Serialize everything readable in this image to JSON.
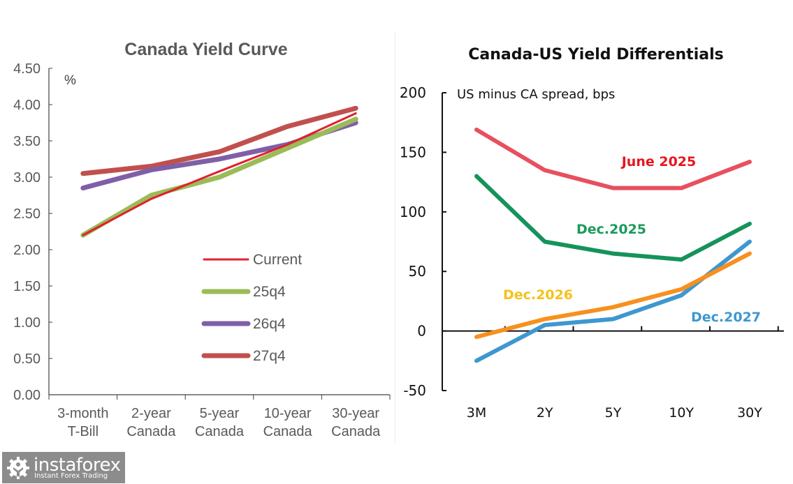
{
  "chart_data": [
    {
      "type": "line",
      "title": "Canada Yield Curve",
      "xlabel": "",
      "ylabel": "%",
      "ylim": [
        0,
        4.5
      ],
      "yticks": [
        "0.00",
        "0.50",
        "1.00",
        "1.50",
        "2.00",
        "2.50",
        "3.00",
        "3.50",
        "4.00",
        "4.50"
      ],
      "ytick_values": [
        0,
        0.5,
        1,
        1.5,
        2,
        2.5,
        3,
        3.5,
        4,
        4.5
      ],
      "categories": [
        [
          "3-month",
          "T-Bill"
        ],
        [
          "2-year",
          "Canada"
        ],
        [
          "5-year",
          "Canada"
        ],
        [
          "10-year",
          "Canada"
        ],
        [
          "30-year",
          "Canada"
        ]
      ],
      "grid": false,
      "legend_position": "center-right",
      "series": [
        {
          "name": "Current",
          "color": "#e0202e",
          "width": "thin",
          "values": [
            2.2,
            2.7,
            3.08,
            3.45,
            3.88
          ]
        },
        {
          "name": "25q4",
          "color": "#9bbb59",
          "width": "thick",
          "values": [
            2.2,
            2.75,
            3.0,
            3.4,
            3.8
          ]
        },
        {
          "name": "26q4",
          "color": "#7f5fa8",
          "width": "thick",
          "values": [
            2.85,
            3.1,
            3.25,
            3.45,
            3.75
          ]
        },
        {
          "name": "27q4",
          "color": "#c0504d",
          "width": "thick",
          "values": [
            3.05,
            3.15,
            3.35,
            3.7,
            3.95
          ]
        }
      ]
    },
    {
      "type": "line",
      "title": "Canada-US Yield Differentials",
      "xlabel": "",
      "ylabel": "US minus CA spread, bps",
      "ylim": [
        -50,
        200
      ],
      "yticks": [
        "-50",
        "0",
        "50",
        "100",
        "150",
        "200"
      ],
      "ytick_values": [
        -50,
        0,
        50,
        100,
        150,
        200
      ],
      "categories": [
        "3M",
        "2Y",
        "5Y",
        "10Y",
        "30Y"
      ],
      "grid": false,
      "legend_position": "inline-labels",
      "series": [
        {
          "name": "June 2025",
          "color": "#e8505f",
          "label_color": "#e8141f",
          "values": [
            169,
            135,
            120,
            120,
            142
          ]
        },
        {
          "name": "Dec.2025",
          "color": "#15935a",
          "label_color": "#1a9a5c",
          "values": [
            130,
            75,
            65,
            60,
            90
          ]
        },
        {
          "name": "Dec.2026",
          "color": "#f7901e",
          "label_color": "#f5c21b",
          "values": [
            -5,
            10,
            20,
            35,
            65
          ]
        },
        {
          "name": "Dec.2027",
          "color": "#3f97cf",
          "label_color": "#3f97cf",
          "values": [
            -25,
            5,
            10,
            30,
            75
          ]
        }
      ]
    }
  ],
  "watermark": {
    "brand": "instaforex",
    "tagline": "Instant Forex Trading",
    "icon": "gear-person-icon"
  }
}
